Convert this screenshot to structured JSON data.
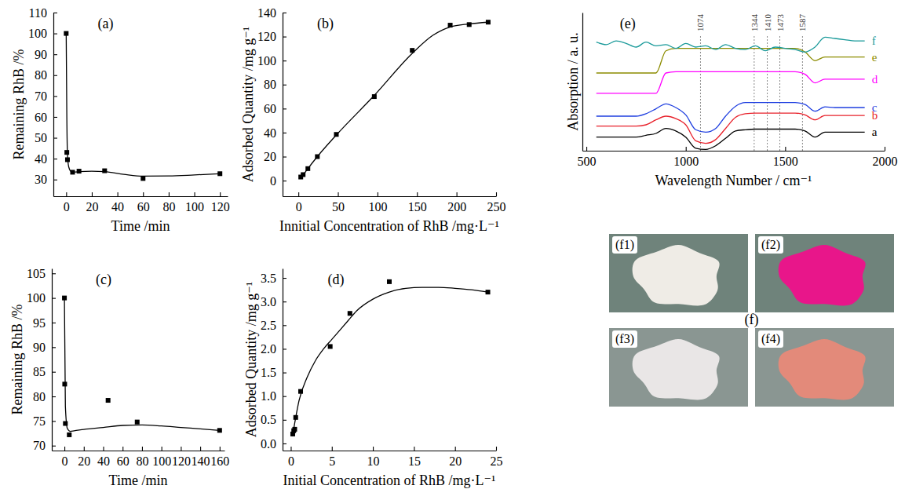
{
  "chart_data": [
    {
      "type": "scatter",
      "title": "(a)",
      "x_label": "Time /min",
      "y_label": "Remaining RhB /%",
      "xlim": [
        -10,
        126
      ],
      "xticks": [
        0,
        20,
        40,
        60,
        80,
        100,
        120
      ],
      "ylim": [
        22,
        110
      ],
      "yticks": [
        30,
        40,
        50,
        60,
        70,
        80,
        90,
        100,
        110
      ],
      "series": [
        {
          "type": "scatter",
          "marker": "square",
          "color": "#000000",
          "x": [
            0,
            0.5,
            1,
            5,
            10,
            30,
            60,
            120
          ],
          "values": [
            100,
            43,
            39.5,
            33.5,
            34,
            34.2,
            30.5,
            32.8
          ]
        },
        {
          "type": "line",
          "line_style": "solid",
          "color": "#000000",
          "x": [
            0,
            0.5,
            1,
            2,
            4,
            7,
            10,
            20,
            30,
            45,
            60,
            80,
            100,
            120
          ],
          "values": [
            100,
            60,
            42,
            36,
            33.8,
            33.6,
            33.8,
            34,
            33.8,
            32.5,
            31.6,
            31.7,
            32.2,
            32.8
          ]
        }
      ]
    },
    {
      "type": "scatter",
      "title": "(b)",
      "x_label": "Innitial Concentration of RhB /mg·L⁻¹",
      "y_label": "Adsorbed Quantity /mg g⁻¹",
      "xlim": [
        -20,
        250
      ],
      "xticks": [
        0,
        50,
        100,
        150,
        200,
        250
      ],
      "ylim": [
        -13,
        140
      ],
      "yticks": [
        0,
        20,
        40,
        60,
        80,
        100,
        120,
        140
      ],
      "series": [
        {
          "type": "scatter",
          "marker": "square",
          "color": "#000000",
          "x": [
            3,
            6,
            12,
            24,
            48,
            96,
            144,
            192,
            216,
            240
          ],
          "values": [
            3,
            5,
            10,
            20,
            38.5,
            70,
            108.5,
            129.5,
            130,
            132
          ]
        },
        {
          "type": "line",
          "line_style": "solid",
          "color": "#000000",
          "x": [
            3,
            12,
            24,
            48,
            96,
            144,
            170,
            192,
            216,
            240
          ],
          "values": [
            2,
            10,
            20,
            38,
            71,
            106,
            121,
            128,
            130.5,
            132
          ]
        }
      ]
    },
    {
      "type": "scatter",
      "title": "(c)",
      "x_label": "Time /min",
      "y_label": "Remaining RhB /%",
      "xlim": [
        -13,
        165
      ],
      "xticks": [
        0,
        20,
        40,
        60,
        80,
        100,
        120,
        140,
        160
      ],
      "ylim": [
        69,
        106
      ],
      "yticks": [
        70,
        75,
        80,
        85,
        90,
        95,
        100,
        105
      ],
      "series": [
        {
          "type": "scatter",
          "marker": "square",
          "color": "#000000",
          "x": [
            0,
            0.3,
            1,
            5,
            45,
            75,
            160
          ],
          "values": [
            100,
            82.5,
            74.5,
            72.2,
            79.2,
            74.8,
            73.1
          ]
        },
        {
          "type": "line",
          "line_style": "solid",
          "color": "#000000",
          "x": [
            0,
            1,
            3,
            6,
            10,
            20,
            40,
            60,
            80,
            100,
            120,
            140,
            160
          ],
          "values": [
            100,
            78,
            73.5,
            72.9,
            73,
            73.3,
            73.7,
            74.1,
            74.2,
            74,
            73.7,
            73.4,
            73.1
          ]
        }
      ]
    },
    {
      "type": "scatter",
      "title": "(d)",
      "x_label": "Initial Concentration of RhB /mg·L⁻¹",
      "y_label": "Adsorbed Quantity /mg g⁻¹",
      "xlim": [
        -1,
        25
      ],
      "xticks": [
        0,
        5,
        10,
        15,
        20,
        25
      ],
      "ylim": [
        -0.15,
        3.7
      ],
      "yticks": [
        {
          "value": 0,
          "label": "0.0"
        },
        0.5,
        {
          "value": 1,
          "label": "1.0"
        },
        1.5,
        {
          "value": 2,
          "label": "2.0"
        },
        2.5,
        {
          "value": 3,
          "label": "3.0"
        },
        3.5
      ],
      "series": [
        {
          "type": "scatter",
          "marker": "square",
          "color": "#000000",
          "x": [
            0.24,
            0.36,
            0.48,
            0.6,
            1.2,
            4.8,
            7.2,
            12,
            24
          ],
          "values": [
            0.2,
            0.27,
            0.3,
            0.55,
            1.1,
            2.05,
            2.75,
            3.42,
            3.2
          ]
        },
        {
          "type": "line",
          "line_style": "solid",
          "color": "#000000",
          "x": [
            0.2,
            0.5,
            1,
            2,
            3,
            4,
            5,
            6,
            7,
            8,
            10,
            12,
            14,
            16,
            18,
            20,
            22,
            24
          ],
          "values": [
            0.15,
            0.45,
            0.9,
            1.4,
            1.75,
            2.0,
            2.2,
            2.4,
            2.6,
            2.8,
            3.05,
            3.2,
            3.28,
            3.3,
            3.3,
            3.28,
            3.25,
            3.2
          ]
        }
      ]
    },
    {
      "type": "line",
      "title": "(e)",
      "x_label": "Wavelength Number / cm⁻¹",
      "y_label": "Absorption / a. u.",
      "xlim": [
        480,
        2000
      ],
      "xticks": [
        500,
        1000,
        1500,
        2000
      ],
      "ylim": [
        0,
        112
      ],
      "yticks": [],
      "tick_labels": "x",
      "annotations": [
        1074,
        1344,
        1410,
        1473,
        1587
      ],
      "x": [
        550,
        600,
        650,
        700,
        750,
        800,
        850,
        900,
        950,
        1000,
        1050,
        1100,
        1150,
        1200,
        1250,
        1300,
        1350,
        1400,
        1450,
        1500,
        1550,
        1600,
        1650,
        1700,
        1750,
        1800,
        1850,
        1900
      ],
      "series": [
        {
          "name": "a",
          "color": "#000000",
          "line_style": "solid",
          "values": [
            11,
            11,
            11,
            11,
            11,
            12.5,
            14,
            18,
            16,
            11,
            2,
            1,
            4,
            10,
            16,
            17,
            17.5,
            17.5,
            17.5,
            17.5,
            17.5,
            16,
            11,
            15,
            15,
            15,
            15,
            15
          ]
        },
        {
          "name": "b",
          "color": "#e8202a",
          "line_style": "solid",
          "values": [
            20,
            20,
            20,
            20,
            20,
            21,
            25,
            28,
            26,
            21,
            8,
            6,
            9,
            18,
            27,
            30,
            30.5,
            30.5,
            30.5,
            30.5,
            30.5,
            29,
            25,
            28.5,
            28.5,
            28.5,
            28.5,
            28.5
          ]
        },
        {
          "name": "c",
          "color": "#1f3fe0",
          "line_style": "solid",
          "values": [
            28,
            28,
            28,
            28,
            28,
            30,
            34,
            38,
            35,
            29,
            17,
            15,
            18,
            28,
            36,
            39,
            39,
            39,
            39,
            39,
            39,
            37.5,
            32,
            35.5,
            35,
            35,
            35,
            35
          ]
        },
        {
          "name": "d",
          "color": "#ff00ff",
          "line_style": "solid",
          "values": [
            46.5,
            46.5,
            46.5,
            46.5,
            46.5,
            46.5,
            46.5,
            63,
            64,
            64,
            64,
            64,
            64,
            64,
            64,
            64,
            64,
            64,
            64,
            64,
            64,
            62,
            55,
            58,
            58,
            58,
            58,
            58
          ]
        },
        {
          "name": "e",
          "color": "#8c8c00",
          "line_style": "solid",
          "values": [
            63,
            63,
            63,
            63,
            63,
            63,
            63,
            81,
            83,
            83,
            83,
            83,
            83,
            83,
            83,
            83,
            83,
            83,
            83,
            83,
            83,
            80,
            73,
            76,
            76,
            76,
            76,
            76
          ]
        },
        {
          "name": "f",
          "color": "#1a9a9a",
          "line_style": "solid",
          "values": [
            88,
            86,
            89,
            87,
            84,
            88,
            85,
            86,
            83,
            87,
            84,
            85,
            82,
            86,
            83,
            82,
            85,
            81,
            84,
            83,
            82,
            80,
            84,
            92,
            91,
            90,
            89,
            89
          ]
        }
      ]
    }
  ],
  "photo_panel": {
    "title": "(f)",
    "photos": [
      {
        "label": "(f1)",
        "color": "#efece6"
      },
      {
        "label": "(f2)",
        "color": "#e8168a"
      },
      {
        "label": "(f3)",
        "color": "#e9e6e6"
      },
      {
        "label": "(f4)",
        "color": "#e38a7a"
      }
    ]
  }
}
